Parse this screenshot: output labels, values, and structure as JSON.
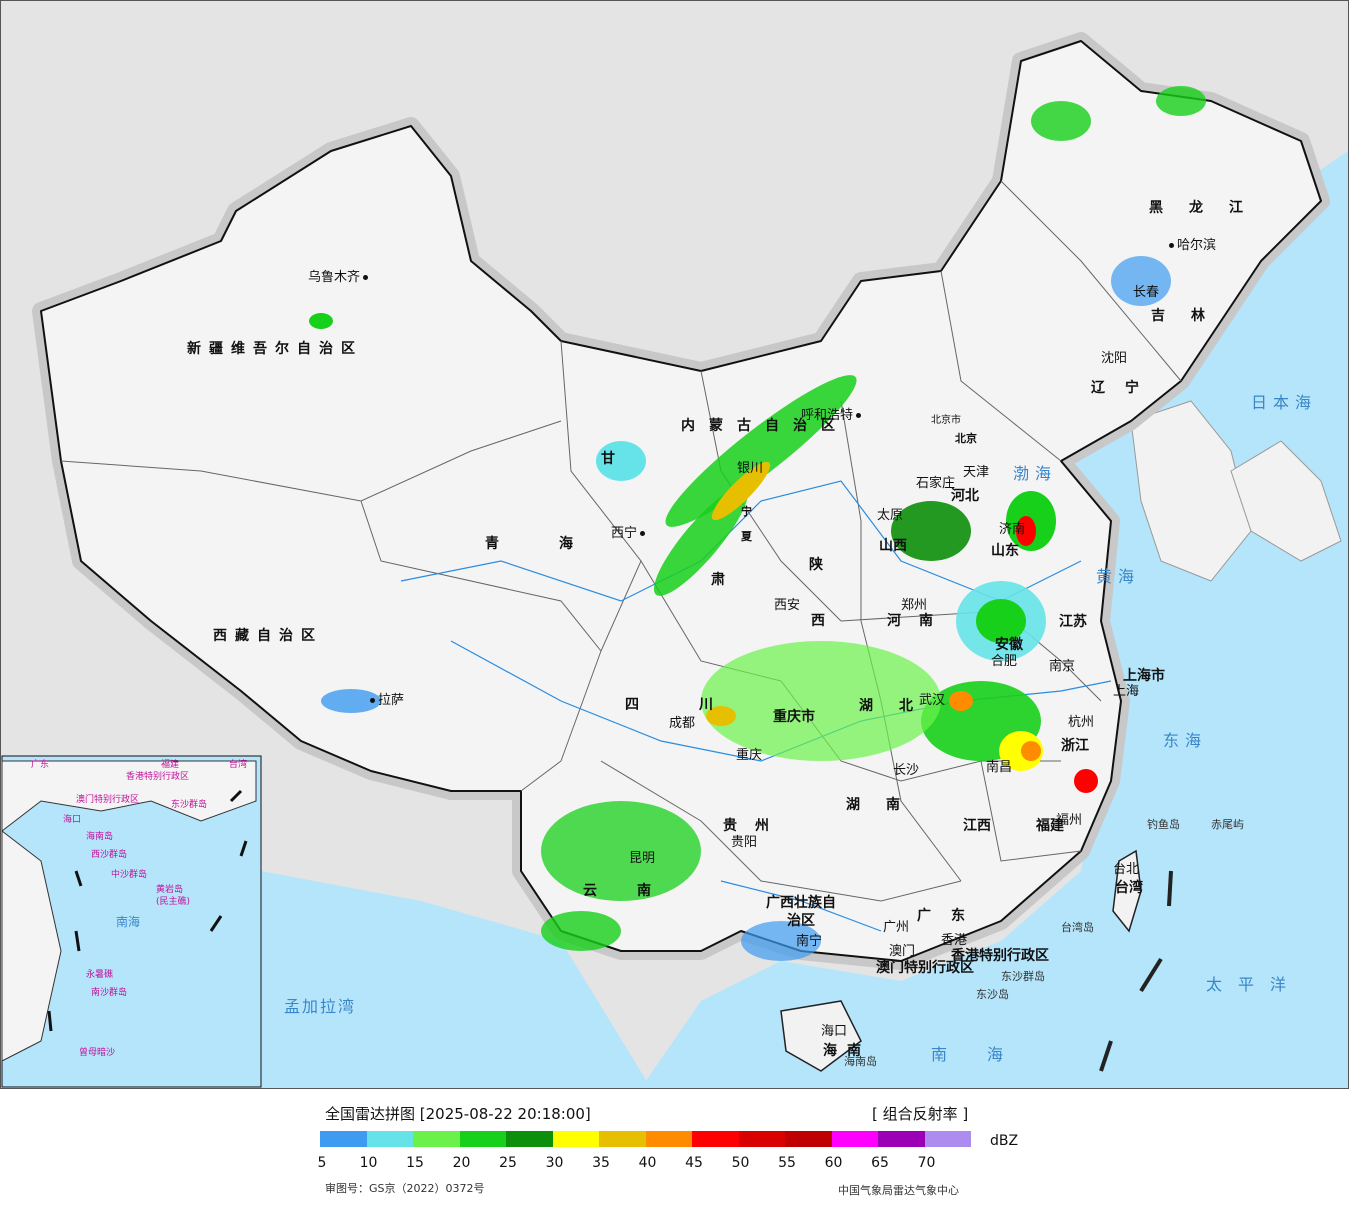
{
  "map": {
    "inset": {
      "labels": [
        "广东",
        "福建",
        "台湾",
        "海口",
        "海南岛",
        "中沙群岛",
        "南海",
        "东沙群岛",
        "香港特别行政区",
        "澳门特别行政区",
        "西沙群岛",
        "黄岩岛",
        "(民主礁)",
        "永暑礁",
        "南沙群岛",
        "曾母暗沙"
      ]
    },
    "cities": [
      "乌鲁木齐",
      "呼和浩特",
      "北京市",
      "天津",
      "石家庄",
      "太原",
      "银川",
      "西宁",
      "济南",
      "郑州",
      "西安",
      "合肥",
      "南京",
      "上海",
      "杭州",
      "武汉",
      "成都",
      "重庆",
      "拉萨",
      "长沙",
      "南昌",
      "福州",
      "台北",
      "贵阳",
      "昆明",
      "南宁",
      "广州",
      "澳门",
      "香港",
      "海口",
      "哈尔滨",
      "长春",
      "沈阳"
    ],
    "provinces": [
      "新疆维吾尔自治区",
      "西藏自治区",
      "青海",
      "甘",
      "肃",
      "内蒙古自治区",
      "宁",
      "夏",
      "陕",
      "西",
      "山西",
      "河北",
      "河南",
      "山东",
      "江苏",
      "安徽",
      "浙江",
      "湖北",
      "湖南",
      "江西",
      "福建",
      "四川",
      "重庆市",
      "贵州",
      "云南",
      "广西壮族自治区",
      "广东",
      "海南",
      "黑龙江",
      "吉林",
      "辽宁",
      "北京",
      "上海市",
      "台湾",
      "香港特别行政区",
      "澳门特别行政区"
    ],
    "seas": [
      "渤海",
      "黄海",
      "东海",
      "南海",
      "日本海",
      "太平洋",
      "孟加拉湾"
    ],
    "islands": [
      "钓鱼岛",
      "赤尾屿",
      "台湾岛",
      "东沙群岛",
      "海南岛",
      "东沙岛"
    ]
  },
  "legend": {
    "title": "全国雷达拼图 [2025-08-22 20:18:00]",
    "product": "[ 组合反射率 ]",
    "unit": "dBZ",
    "colors": [
      "#3d9bf0",
      "#66e3e8",
      "#6bf24a",
      "#17d01a",
      "#0c8f0b",
      "#ffff00",
      "#e6c000",
      "#ff8c00",
      "#ff0000",
      "#d90000",
      "#c00000",
      "#ff00ff",
      "#9b00b5",
      "#ad8cf0"
    ],
    "ticks": [
      "5",
      "10",
      "15",
      "20",
      "25",
      "30",
      "35",
      "40",
      "45",
      "50",
      "55",
      "60",
      "65",
      "70"
    ],
    "review_number": "审图号：GS京（2022）0372号",
    "source": "中国气象局雷达气象中心"
  }
}
